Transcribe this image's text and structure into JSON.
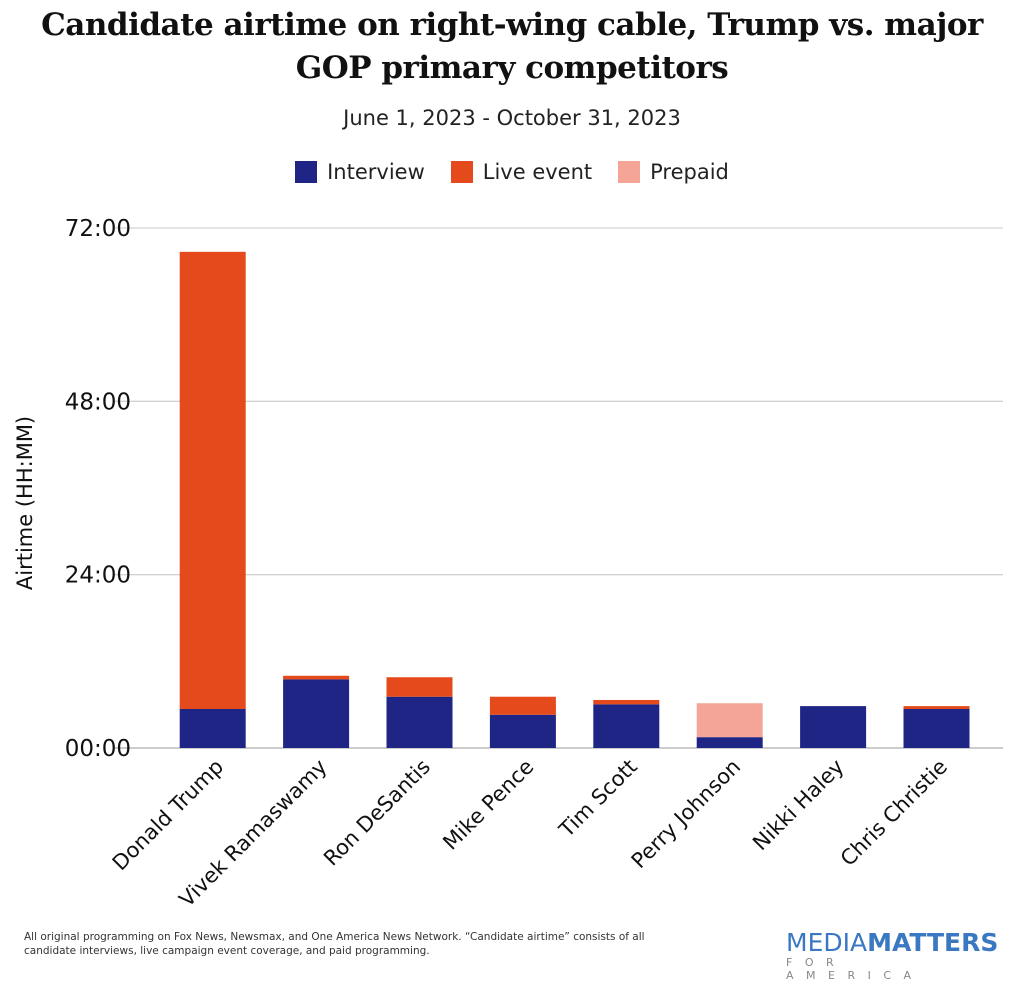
{
  "chart_data": {
    "type": "bar",
    "stacked": true,
    "title": "Candidate airtime on right-wing cable, Trump vs. major GOP primary competitors",
    "subtitle": "June 1, 2023 - October 31, 2023",
    "ylabel": "Airtime (HH:MM)",
    "xlabel": "",
    "ylim": [
      0,
      72
    ],
    "yticks": [
      "00:00",
      "24:00",
      "48:00",
      "72:00"
    ],
    "ytick_values": [
      0,
      24,
      48,
      72
    ],
    "grid": true,
    "legend_position": "top",
    "categories": [
      "Donald Trump",
      "Vivek Ramaswamy",
      "Ron DeSantis",
      "Mike Pence",
      "Tim Scott",
      "Perry Johnson",
      "Nikki Haley",
      "Chris Christie"
    ],
    "series": [
      {
        "name": "Interview",
        "color": "#1e2585",
        "values": [
          5.4,
          9.5,
          7.1,
          4.6,
          6.05,
          1.5,
          5.8,
          5.4
        ]
      },
      {
        "name": "Live event",
        "color": "#e44a1c",
        "values": [
          63.3,
          0.5,
          2.7,
          2.5,
          0.6,
          0,
          0,
          0.4
        ]
      },
      {
        "name": "Prepaid",
        "color": "#f4a598",
        "values": [
          0,
          0,
          0,
          0,
          0,
          4.7,
          0,
          0
        ]
      }
    ],
    "units": "hours"
  },
  "footnote": "All original programming on Fox News, Newsmax, and One America News Network. “Candidate airtime” consists of all candidate interviews, live campaign event coverage, and paid programming.",
  "logo": {
    "media": "MEDIA",
    "matters": "MATTERS",
    "for_america": "FOR AMERICA"
  }
}
